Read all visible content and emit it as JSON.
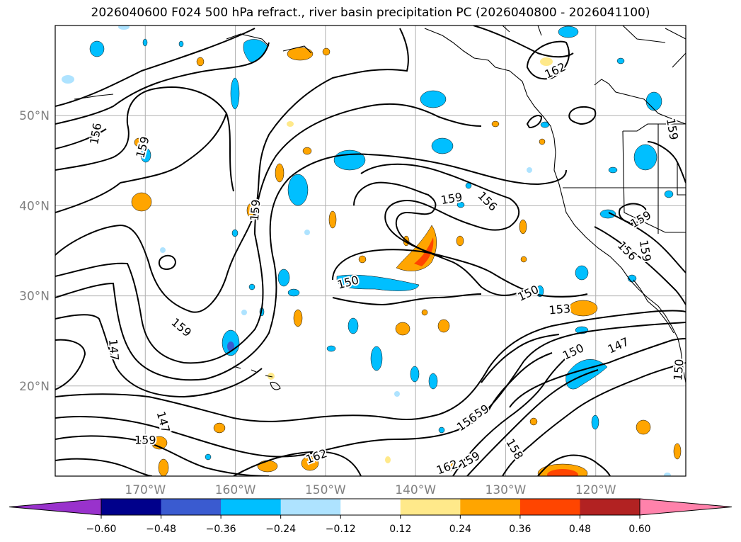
{
  "title": "2026040600 F024 500 hPa refract., river basin precipitation PC (2026040800 - 2026041100)",
  "map": {
    "lon_range": [
      -180,
      -110
    ],
    "lat_range": [
      10,
      60
    ],
    "lon_ticks": [
      {
        "value": -170,
        "label": "170°W"
      },
      {
        "value": -160,
        "label": "160°W"
      },
      {
        "value": -150,
        "label": "150°W"
      },
      {
        "value": -140,
        "label": "140°W"
      },
      {
        "value": -130,
        "label": "130°W"
      },
      {
        "value": -120,
        "label": "120°W"
      }
    ],
    "lat_ticks": [
      {
        "value": 20,
        "label": "20°N"
      },
      {
        "value": 30,
        "label": "30°N"
      },
      {
        "value": 40,
        "label": "40°N"
      },
      {
        "value": 50,
        "label": "50°N"
      }
    ],
    "contour_labels": [
      {
        "text": "156",
        "lon": -175.5,
        "lat": 48.0,
        "rot": -80
      },
      {
        "text": "159",
        "lon": -170.3,
        "lat": 46.5,
        "rot": -75
      },
      {
        "text": "159",
        "lon": -157.8,
        "lat": 39.5,
        "rot": -85
      },
      {
        "text": "162",
        "lon": -124.5,
        "lat": 55.0,
        "rot": -25
      },
      {
        "text": "159",
        "lon": -111.5,
        "lat": 48.5,
        "rot": 80
      },
      {
        "text": "159",
        "lon": -136.0,
        "lat": 40.8,
        "rot": -10
      },
      {
        "text": "156",
        "lon": -132.0,
        "lat": 40.5,
        "rot": 45
      },
      {
        "text": "159",
        "lon": -115.0,
        "lat": 38.5,
        "rot": -30
      },
      {
        "text": "156",
        "lon": -116.5,
        "lat": 35.0,
        "rot": 45
      },
      {
        "text": "159",
        "lon": -114.5,
        "lat": 35.0,
        "rot": 80
      },
      {
        "text": "150",
        "lon": -147.5,
        "lat": 31.5,
        "rot": -15
      },
      {
        "text": "150",
        "lon": -127.5,
        "lat": 30.3,
        "rot": -25
      },
      {
        "text": "153",
        "lon": -124.0,
        "lat": 28.5,
        "rot": -5
      },
      {
        "text": "159",
        "lon": -166.0,
        "lat": 26.5,
        "rot": 40
      },
      {
        "text": "147",
        "lon": -173.5,
        "lat": 24.0,
        "rot": 85
      },
      {
        "text": "150",
        "lon": -122.5,
        "lat": 23.8,
        "rot": -25
      },
      {
        "text": "147",
        "lon": -117.5,
        "lat": 24.5,
        "rot": -25
      },
      {
        "text": "150",
        "lon": -110.8,
        "lat": 21.8,
        "rot": -85
      },
      {
        "text": "147",
        "lon": -168.0,
        "lat": 16.0,
        "rot": 75
      },
      {
        "text": "159",
        "lon": -133.0,
        "lat": 17.0,
        "rot": -30
      },
      {
        "text": "156",
        "lon": -134.3,
        "lat": 16.0,
        "rot": -35
      },
      {
        "text": "159",
        "lon": -170.0,
        "lat": 14.0,
        "rot": 0
      },
      {
        "text": "162",
        "lon": -151.0,
        "lat": 12.2,
        "rot": -20
      },
      {
        "text": "159",
        "lon": -134.0,
        "lat": 11.8,
        "rot": -30
      },
      {
        "text": "162",
        "lon": -136.5,
        "lat": 11.0,
        "rot": -20
      },
      {
        "text": "158",
        "lon": -129.0,
        "lat": 13.0,
        "rot": 60
      }
    ]
  },
  "colorbar": {
    "ticks": [
      "−0.60",
      "−0.48",
      "−0.36",
      "−0.24",
      "−0.12",
      "0.12",
      "0.24",
      "0.36",
      "0.48",
      "0.60"
    ],
    "colors": [
      "#9932cc",
      "#00008b",
      "#3a5bd0",
      "#00bfff",
      "#aee3ff",
      "#ffffff",
      "#ffe98a",
      "#ffa500",
      "#ff4500",
      "#b22222",
      "#ff82ab"
    ]
  }
}
